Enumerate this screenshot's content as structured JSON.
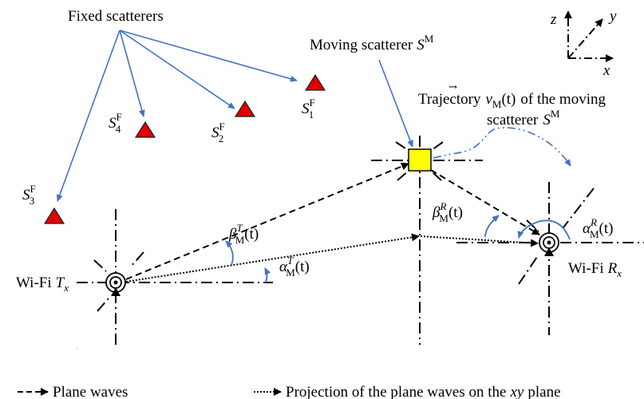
{
  "labels": {
    "fixed_scatterers": "Fixed scatterers",
    "moving_scatterer": "Moving scatterer",
    "trajectory_line1": "Trajectory",
    "trajectory_line1_tail": "of the moving",
    "trajectory_line2": "scatterer",
    "tx_prefix": "Wi-Fi",
    "rx_prefix": "Wi-Fi"
  },
  "symbols": {
    "S": "S",
    "F": "F",
    "M": "M",
    "T": "T",
    "R": "R",
    "x": "x",
    "one": "1",
    "two": "2",
    "three": "3",
    "four": "4",
    "t_arg": "(t)",
    "beta": "β",
    "alpha": "α",
    "v": "v"
  },
  "axes": {
    "x": "x",
    "y": "y",
    "z": "z"
  },
  "legend": {
    "plane_waves": "Plane waves",
    "projection_prefix": "Projection of the plane waves on the",
    "projection_plane": "xy",
    "projection_suffix": "plane"
  },
  "colors": {
    "scatterer_fixed": "#e00000",
    "scatterer_moving": "#ffff00",
    "arrows": "#4472c4"
  }
}
